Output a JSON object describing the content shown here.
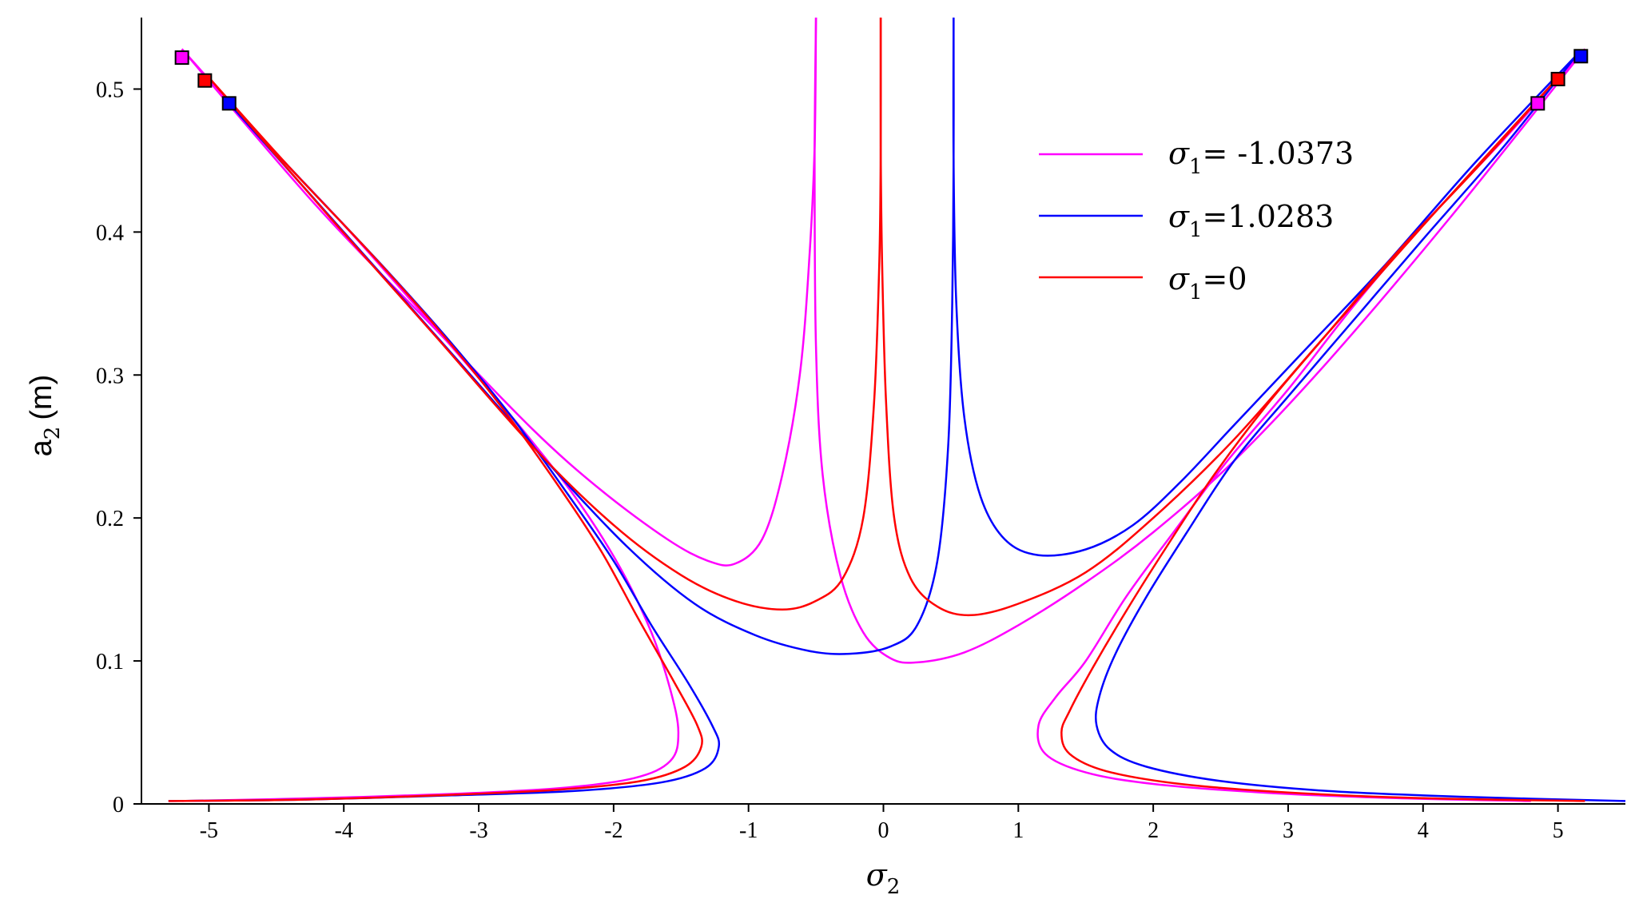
{
  "chart_data": {
    "type": "line",
    "title": "",
    "xlabel": "σ2",
    "xlabel_symbol": "σ",
    "xlabel_sub": "2",
    "ylabel": "a2 (m)",
    "ylabel_base": "a",
    "ylabel_sub": "2",
    "ylabel_unit": "(m)",
    "xlim": [
      -5.5,
      5.5
    ],
    "ylim": [
      0,
      0.55
    ],
    "xticks": [
      -5,
      -4,
      -3,
      -2,
      -1,
      0,
      1,
      2,
      3,
      4,
      5
    ],
    "xtick_labels": [
      "-5",
      "-4",
      "-3",
      "-2",
      "-1",
      "0",
      "1",
      "2",
      "3",
      "4",
      "5"
    ],
    "yticks": [
      0,
      0.1,
      0.2,
      0.3,
      0.4,
      0.5
    ],
    "ytick_labels": [
      "0",
      "0.1",
      "0.2",
      "0.3",
      "0.4",
      "0.5"
    ],
    "grid": false,
    "legend_position": "top-right",
    "series": [
      {
        "name": "σ1= -1.0373",
        "legend_symbol": "σ",
        "legend_sub": "1",
        "legend_value": "= -1.0373",
        "color": "#ff00ff",
        "outer_left": [
          [
            -5.2,
            0.528
          ],
          [
            -4.6,
            0.465
          ],
          [
            -4.0,
            0.405
          ],
          [
            -3.5,
            0.352
          ],
          [
            -3.0,
            0.298
          ],
          [
            -2.6,
            0.253
          ],
          [
            -2.25,
            0.21
          ],
          [
            -1.95,
            0.165
          ],
          [
            -1.72,
            0.12
          ],
          [
            -1.58,
            0.08
          ],
          [
            -1.52,
            0.05
          ],
          [
            -1.58,
            0.03
          ],
          [
            -1.85,
            0.018
          ],
          [
            -2.4,
            0.011
          ],
          [
            -3.2,
            0.007
          ],
          [
            -4.2,
            0.004
          ],
          [
            -5.2,
            0.002
          ]
        ],
        "outer_right": [
          [
            5.2,
            0.528
          ],
          [
            4.6,
            0.465
          ],
          [
            4.0,
            0.405
          ],
          [
            3.5,
            0.35
          ],
          [
            3.0,
            0.29
          ],
          [
            2.55,
            0.24
          ],
          [
            2.15,
            0.19
          ],
          [
            1.8,
            0.145
          ],
          [
            1.5,
            0.1
          ],
          [
            1.28,
            0.075
          ],
          [
            1.15,
            0.055
          ],
          [
            1.2,
            0.035
          ],
          [
            1.5,
            0.022
          ],
          [
            2.0,
            0.014
          ],
          [
            2.8,
            0.008
          ],
          [
            3.8,
            0.004
          ],
          [
            4.8,
            0.002
          ]
        ],
        "inner_left": [
          [
            -5.2,
            0.528
          ],
          [
            -4.2,
            0.418
          ],
          [
            -3.3,
            0.33
          ],
          [
            -2.6,
            0.262
          ],
          [
            -2.1,
            0.22
          ],
          [
            -1.6,
            0.185
          ],
          [
            -1.3,
            0.17
          ],
          [
            -1.1,
            0.168
          ],
          [
            -0.9,
            0.185
          ],
          [
            -0.75,
            0.23
          ],
          [
            -0.62,
            0.3
          ],
          [
            -0.55,
            0.38
          ],
          [
            -0.51,
            0.46
          ],
          [
            -0.5,
            0.55
          ]
        ],
        "inner_right": [
          [
            5.2,
            0.528
          ],
          [
            4.2,
            0.41
          ],
          [
            3.3,
            0.31
          ],
          [
            2.6,
            0.24
          ],
          [
            2.0,
            0.19
          ],
          [
            1.5,
            0.155
          ],
          [
            1.0,
            0.125
          ],
          [
            0.6,
            0.106
          ],
          [
            0.25,
            0.099
          ],
          [
            0.05,
            0.102
          ],
          [
            -0.15,
            0.12
          ],
          [
            -0.32,
            0.16
          ],
          [
            -0.45,
            0.23
          ],
          [
            -0.5,
            0.32
          ],
          [
            -0.51,
            0.45
          ],
          [
            -0.5,
            0.55
          ]
        ]
      },
      {
        "name": "σ1=1.0283",
        "legend_symbol": "σ",
        "legend_sub": "1",
        "legend_value": "=1.0283",
        "color": "#0000ff",
        "outer_left": [
          [
            -4.85,
            0.49
          ],
          [
            -4.3,
            0.435
          ],
          [
            -3.7,
            0.375
          ],
          [
            -3.2,
            0.322
          ],
          [
            -2.75,
            0.27
          ],
          [
            -2.35,
            0.218
          ],
          [
            -2.0,
            0.17
          ],
          [
            -1.72,
            0.125
          ],
          [
            -1.45,
            0.085
          ],
          [
            -1.27,
            0.055
          ],
          [
            -1.22,
            0.04
          ],
          [
            -1.32,
            0.025
          ],
          [
            -1.65,
            0.015
          ],
          [
            -2.3,
            0.009
          ],
          [
            -3.2,
            0.006
          ],
          [
            -4.3,
            0.003
          ],
          [
            -5.3,
            0.002
          ]
        ],
        "outer_right": [
          [
            5.15,
            0.525
          ],
          [
            4.6,
            0.46
          ],
          [
            4.0,
            0.395
          ],
          [
            3.5,
            0.34
          ],
          [
            3.0,
            0.285
          ],
          [
            2.6,
            0.24
          ],
          [
            2.25,
            0.19
          ],
          [
            1.95,
            0.145
          ],
          [
            1.72,
            0.105
          ],
          [
            1.6,
            0.075
          ],
          [
            1.58,
            0.055
          ],
          [
            1.68,
            0.038
          ],
          [
            1.95,
            0.026
          ],
          [
            2.5,
            0.016
          ],
          [
            3.3,
            0.009
          ],
          [
            4.3,
            0.005
          ],
          [
            5.5,
            0.002
          ]
        ],
        "inner_left": [
          [
            -4.85,
            0.49
          ],
          [
            -4.0,
            0.4
          ],
          [
            -3.2,
            0.315
          ],
          [
            -2.5,
            0.24
          ],
          [
            -1.9,
            0.18
          ],
          [
            -1.4,
            0.14
          ],
          [
            -0.95,
            0.118
          ],
          [
            -0.55,
            0.107
          ],
          [
            -0.25,
            0.105
          ],
          [
            0.05,
            0.11
          ],
          [
            0.25,
            0.125
          ],
          [
            0.4,
            0.17
          ],
          [
            0.48,
            0.25
          ],
          [
            0.51,
            0.35
          ],
          [
            0.52,
            0.45
          ],
          [
            0.52,
            0.55
          ]
        ],
        "inner_right": [
          [
            5.15,
            0.525
          ],
          [
            4.4,
            0.45
          ],
          [
            3.7,
            0.375
          ],
          [
            3.1,
            0.315
          ],
          [
            2.6,
            0.265
          ],
          [
            2.2,
            0.225
          ],
          [
            1.85,
            0.195
          ],
          [
            1.5,
            0.178
          ],
          [
            1.15,
            0.174
          ],
          [
            0.9,
            0.185
          ],
          [
            0.72,
            0.215
          ],
          [
            0.6,
            0.27
          ],
          [
            0.54,
            0.35
          ],
          [
            0.52,
            0.45
          ],
          [
            0.52,
            0.55
          ]
        ]
      },
      {
        "name": "σ1=0",
        "legend_symbol": "σ",
        "legend_sub": "1",
        "legend_value": "=0",
        "color": "#ff0000",
        "outer_left": [
          [
            -5.0,
            0.508
          ],
          [
            -4.4,
            0.445
          ],
          [
            -3.8,
            0.385
          ],
          [
            -3.3,
            0.332
          ],
          [
            -2.85,
            0.28
          ],
          [
            -2.45,
            0.228
          ],
          [
            -2.1,
            0.178
          ],
          [
            -1.82,
            0.13
          ],
          [
            -1.55,
            0.085
          ],
          [
            -1.38,
            0.055
          ],
          [
            -1.35,
            0.04
          ],
          [
            -1.47,
            0.026
          ],
          [
            -1.8,
            0.016
          ],
          [
            -2.4,
            0.01
          ],
          [
            -3.3,
            0.006
          ],
          [
            -4.3,
            0.003
          ],
          [
            -5.3,
            0.002
          ]
        ],
        "outer_right": [
          [
            5.0,
            0.508
          ],
          [
            4.4,
            0.445
          ],
          [
            3.8,
            0.385
          ],
          [
            3.3,
            0.33
          ],
          [
            2.85,
            0.28
          ],
          [
            2.45,
            0.23
          ],
          [
            2.1,
            0.18
          ],
          [
            1.8,
            0.135
          ],
          [
            1.55,
            0.095
          ],
          [
            1.38,
            0.065
          ],
          [
            1.32,
            0.05
          ],
          [
            1.38,
            0.035
          ],
          [
            1.65,
            0.023
          ],
          [
            2.2,
            0.014
          ],
          [
            3.0,
            0.008
          ],
          [
            4.0,
            0.004
          ],
          [
            5.2,
            0.002
          ]
        ],
        "inner_left": [
          [
            -5.0,
            0.508
          ],
          [
            -4.1,
            0.41
          ],
          [
            -3.3,
            0.325
          ],
          [
            -2.6,
            0.25
          ],
          [
            -2.0,
            0.195
          ],
          [
            -1.5,
            0.16
          ],
          [
            -1.1,
            0.142
          ],
          [
            -0.75,
            0.136
          ],
          [
            -0.5,
            0.142
          ],
          [
            -0.3,
            0.158
          ],
          [
            -0.15,
            0.2
          ],
          [
            -0.07,
            0.28
          ],
          [
            -0.03,
            0.38
          ],
          [
            -0.02,
            0.46
          ],
          [
            -0.02,
            0.55
          ]
        ],
        "inner_right": [
          [
            5.0,
            0.508
          ],
          [
            4.1,
            0.415
          ],
          [
            3.3,
            0.33
          ],
          [
            2.6,
            0.255
          ],
          [
            2.0,
            0.2
          ],
          [
            1.5,
            0.162
          ],
          [
            1.0,
            0.14
          ],
          [
            0.65,
            0.132
          ],
          [
            0.4,
            0.138
          ],
          [
            0.2,
            0.158
          ],
          [
            0.08,
            0.2
          ],
          [
            0.02,
            0.28
          ],
          [
            -0.01,
            0.38
          ],
          [
            -0.02,
            0.46
          ],
          [
            -0.02,
            0.55
          ]
        ]
      }
    ],
    "markers": [
      {
        "series": 0,
        "x": -5.2,
        "y": 0.522,
        "color": "#ff00ff"
      },
      {
        "series": 2,
        "x": -5.03,
        "y": 0.506,
        "color": "#ff0000"
      },
      {
        "series": 1,
        "x": -4.85,
        "y": 0.49,
        "color": "#0000ff"
      },
      {
        "series": 0,
        "x": 4.85,
        "y": 0.49,
        "color": "#ff00ff"
      },
      {
        "series": 2,
        "x": 5.0,
        "y": 0.507,
        "color": "#ff0000"
      },
      {
        "series": 1,
        "x": 5.17,
        "y": 0.523,
        "color": "#0000ff"
      }
    ]
  }
}
